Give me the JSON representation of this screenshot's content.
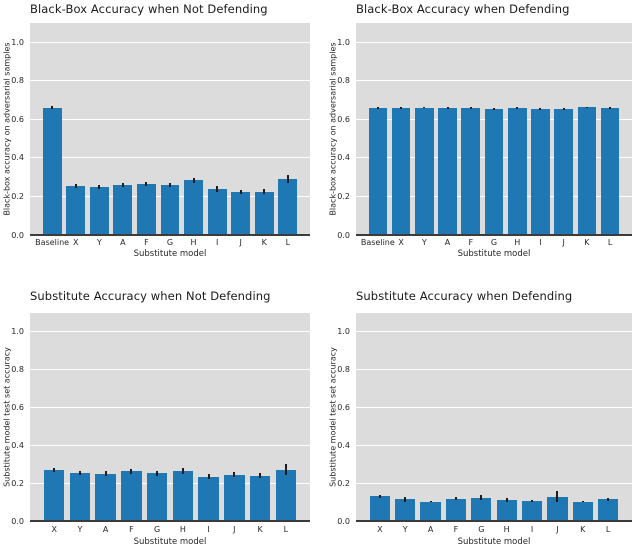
{
  "figure": {
    "background_color": "#ffffff",
    "axes_background_color": "#dcdcdc",
    "grid_color": "#ffffff",
    "bar_color": "#1f77b4",
    "error_bar_color": "#1c1c1c",
    "spine_color": "#3b3b3b",
    "text_color": "#262626",
    "title_color": "#1a1a1a"
  },
  "chart_data": [
    {
      "type": "bar",
      "title": "Black-Box Accuracy when Not Defending",
      "xlabel": "Substitute model",
      "ylabel": "Black-box accuracy on adversarial samples",
      "ylim": [
        0,
        1.1
      ],
      "yticks": [
        0.0,
        0.2,
        0.4,
        0.6,
        0.8,
        1.0
      ],
      "grid": true,
      "legend": "none",
      "categories": [
        "Baseline",
        "X",
        "Y",
        "A",
        "F",
        "G",
        "H",
        "I",
        "J",
        "K",
        "L"
      ],
      "values": [
        0.66,
        0.255,
        0.25,
        0.26,
        0.265,
        0.26,
        0.285,
        0.24,
        0.225,
        0.225,
        0.29
      ],
      "errors": [
        0.008,
        0.012,
        0.01,
        0.012,
        0.01,
        0.012,
        0.013,
        0.015,
        0.01,
        0.012,
        0.02
      ]
    },
    {
      "type": "bar",
      "title": "Black-Box Accuracy when Defending",
      "xlabel": "Substitute model",
      "ylabel": "Black-box accuracy on adversarial samples",
      "ylim": [
        0,
        1.1
      ],
      "yticks": [
        0.0,
        0.2,
        0.4,
        0.6,
        0.8,
        1.0
      ],
      "grid": true,
      "legend": "none",
      "categories": [
        "Baseline",
        "X",
        "Y",
        "A",
        "F",
        "G",
        "H",
        "I",
        "J",
        "K",
        "L"
      ],
      "values": [
        0.66,
        0.657,
        0.661,
        0.66,
        0.661,
        0.656,
        0.66,
        0.656,
        0.653,
        0.662,
        0.66
      ],
      "errors": [
        0.004,
        0.005,
        0.004,
        0.004,
        0.005,
        0.005,
        0.004,
        0.005,
        0.006,
        0.004,
        0.004
      ]
    },
    {
      "type": "bar",
      "title": "Substitute Accuracy when Not Defending",
      "xlabel": "Substitute model",
      "ylabel": "Substitute model test set accuracy",
      "ylim": [
        0,
        1.1
      ],
      "yticks": [
        0.0,
        0.2,
        0.4,
        0.6,
        0.8,
        1.0
      ],
      "grid": true,
      "legend": "none",
      "categories": [
        "X",
        "Y",
        "A",
        "F",
        "G",
        "H",
        "I",
        "J",
        "K",
        "L"
      ],
      "values": [
        0.27,
        0.255,
        0.25,
        0.263,
        0.252,
        0.265,
        0.235,
        0.245,
        0.24,
        0.272
      ],
      "errors": [
        0.012,
        0.01,
        0.012,
        0.013,
        0.012,
        0.016,
        0.012,
        0.012,
        0.012,
        0.028
      ]
    },
    {
      "type": "bar",
      "title": "Substitute Accuracy when Defending",
      "xlabel": "Substitute model",
      "ylabel": "Substitute model test set accuracy",
      "ylim": [
        0,
        1.1
      ],
      "yticks": [
        0.0,
        0.2,
        0.4,
        0.6,
        0.8,
        1.0
      ],
      "grid": true,
      "legend": "none",
      "categories": [
        "X",
        "Y",
        "A",
        "F",
        "G",
        "H",
        "I",
        "J",
        "K",
        "L"
      ],
      "values": [
        0.13,
        0.114,
        0.103,
        0.117,
        0.124,
        0.111,
        0.104,
        0.128,
        0.102,
        0.114
      ],
      "errors": [
        0.008,
        0.014,
        0.004,
        0.008,
        0.012,
        0.012,
        0.006,
        0.03,
        0.004,
        0.008
      ]
    }
  ]
}
